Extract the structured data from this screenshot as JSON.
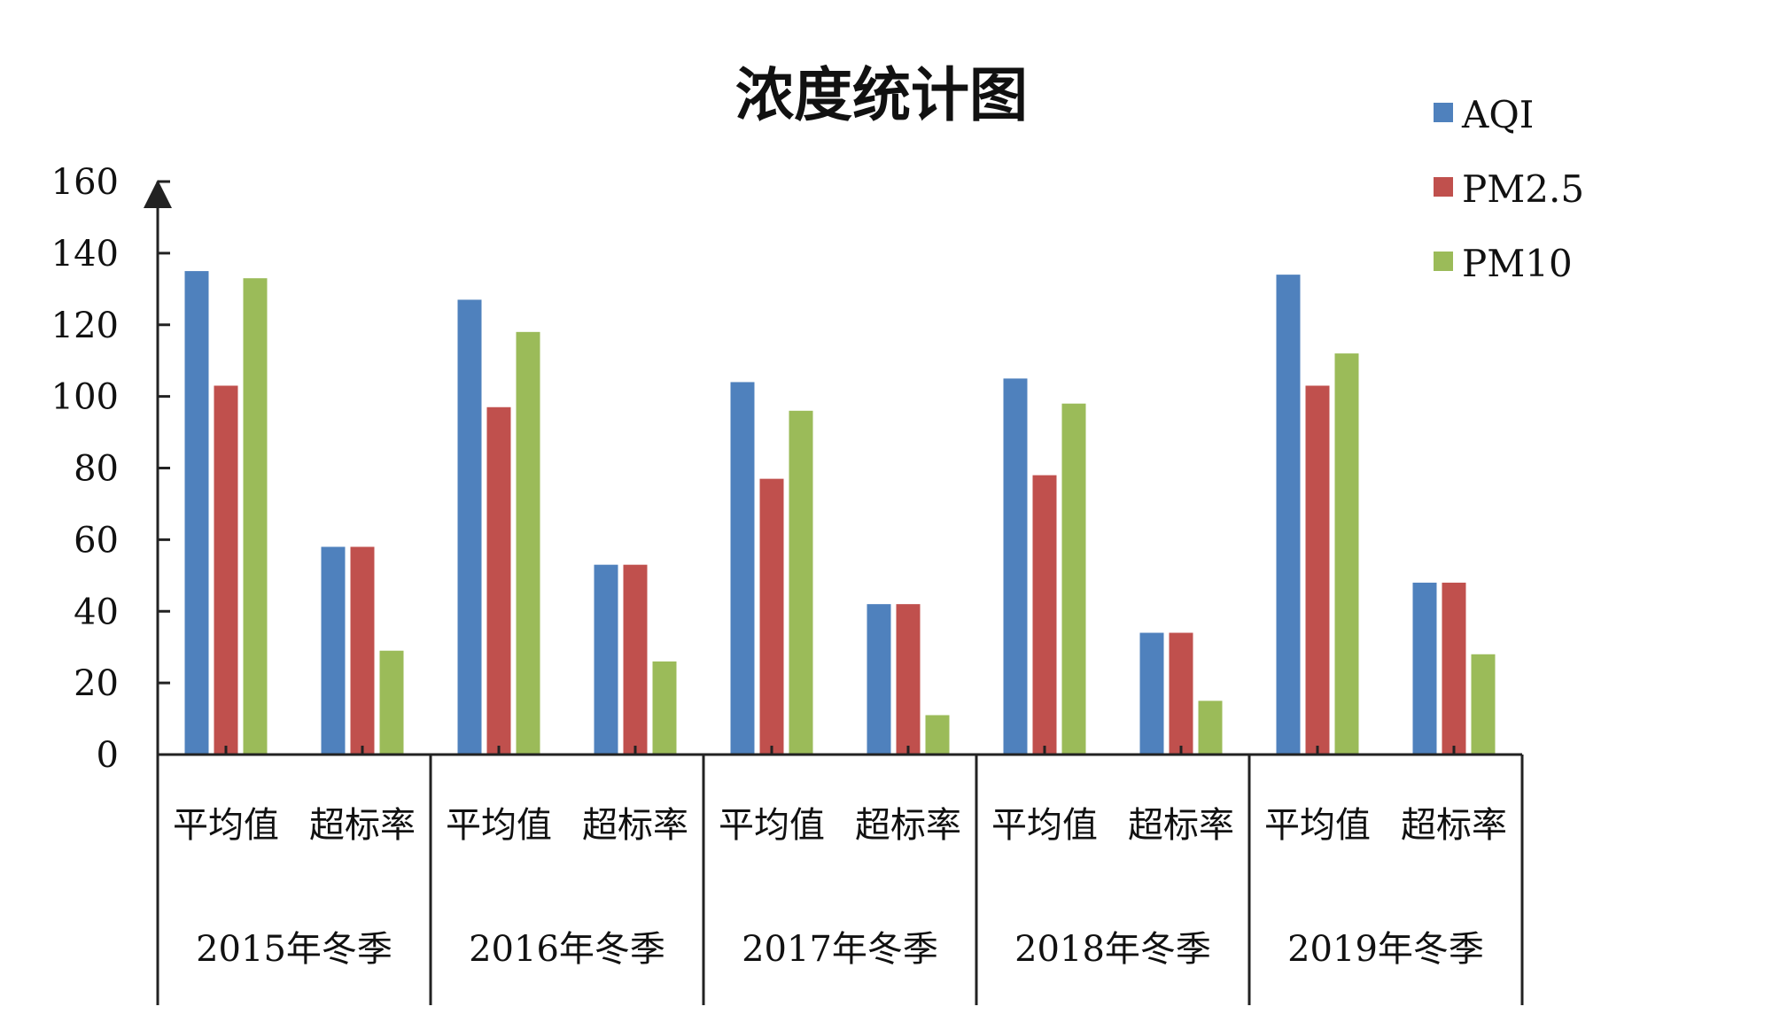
{
  "chart_data": {
    "type": "bar",
    "title": "浓度统计图",
    "ylim": [
      0,
      160
    ],
    "y_ticks": [
      "0",
      "20",
      "40",
      "60",
      "80",
      "100",
      "120",
      "140",
      "160"
    ],
    "groups": [
      "2015年冬季",
      "2016年冬季",
      "2017年冬季",
      "2018年冬季",
      "2019年冬季"
    ],
    "categories": [
      "平均值",
      "超标率"
    ],
    "legend_position": "top-right",
    "series": [
      {
        "name": "AQI",
        "color": "#4f81bd",
        "values": [
          [
            135,
            58
          ],
          [
            127,
            53
          ],
          [
            104,
            42
          ],
          [
            105,
            34
          ],
          [
            134,
            48
          ]
        ]
      },
      {
        "name": "PM2.5",
        "color": "#c0504d",
        "values": [
          [
            103,
            58
          ],
          [
            97,
            53
          ],
          [
            77,
            42
          ],
          [
            78,
            34
          ],
          [
            103,
            48
          ]
        ]
      },
      {
        "name": "PM10",
        "color": "#9bbb59",
        "values": [
          [
            133,
            29
          ],
          [
            118,
            26
          ],
          [
            96,
            11
          ],
          [
            98,
            15
          ],
          [
            112,
            28
          ]
        ]
      }
    ]
  }
}
